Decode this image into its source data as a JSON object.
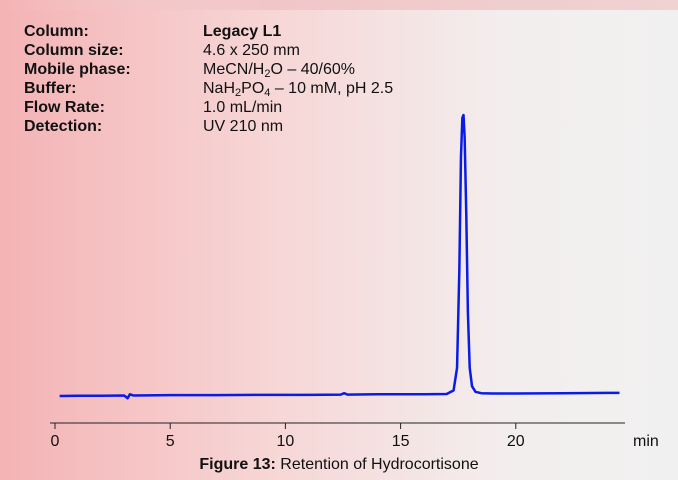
{
  "chart_data": {
    "type": "line",
    "x_label": "min",
    "xlim": [
      0,
      25
    ],
    "xticks": [
      0,
      5,
      10,
      15,
      20
    ],
    "ylim": [
      0,
      100
    ],
    "series": [
      {
        "color": "#0b1be6",
        "x": [
          0.2,
          1.0,
          2.0,
          3.0,
          3.15,
          3.25,
          3.4,
          5.0,
          7.0,
          9.0,
          11.0,
          12.4,
          12.55,
          12.7,
          14.0,
          16.0,
          17.0,
          17.3,
          17.45,
          17.55,
          17.62,
          17.68,
          17.73,
          17.78,
          17.85,
          17.92,
          18.0,
          18.1,
          18.25,
          18.5,
          19.0,
          20.0,
          22.0,
          24.0,
          24.5
        ],
        "values": [
          0,
          0.1,
          0.1,
          0.2,
          -0.8,
          0.6,
          0.2,
          0.3,
          0.3,
          0.4,
          0.4,
          0.5,
          1.0,
          0.5,
          0.6,
          0.6,
          0.7,
          2,
          10,
          45,
          85,
          99,
          100,
          92,
          65,
          30,
          10,
          3.5,
          1.5,
          1.0,
          0.9,
          0.9,
          1.0,
          1.1,
          1.1
        ]
      }
    ]
  },
  "info": [
    {
      "label": "Column:",
      "value": [
        {
          "text": "Legacy L1"
        }
      ],
      "bold": true
    },
    {
      "label": "Column size:",
      "value": [
        {
          "text": "4.6 x 250 mm"
        }
      ]
    },
    {
      "label": "Mobile phase:",
      "value": [
        {
          "text": "MeCN/H"
        },
        {
          "sub": "2"
        },
        {
          "text": "O – 40/60%"
        }
      ]
    },
    {
      "label": "Buffer:",
      "value": [
        {
          "text": "NaH"
        },
        {
          "sub": "2"
        },
        {
          "text": "PO"
        },
        {
          "sub": "4"
        },
        {
          "text": " – 10 mM, pH 2.5"
        }
      ]
    },
    {
      "label": "Flow Rate:",
      "value": [
        {
          "text": "1.0 mL/min"
        }
      ]
    },
    {
      "label": "Detection:",
      "value": [
        {
          "text": "UV 210 nm"
        }
      ]
    }
  ],
  "caption": {
    "label": "Figure 13:",
    "text": "Retention of Hydrocortisone"
  }
}
